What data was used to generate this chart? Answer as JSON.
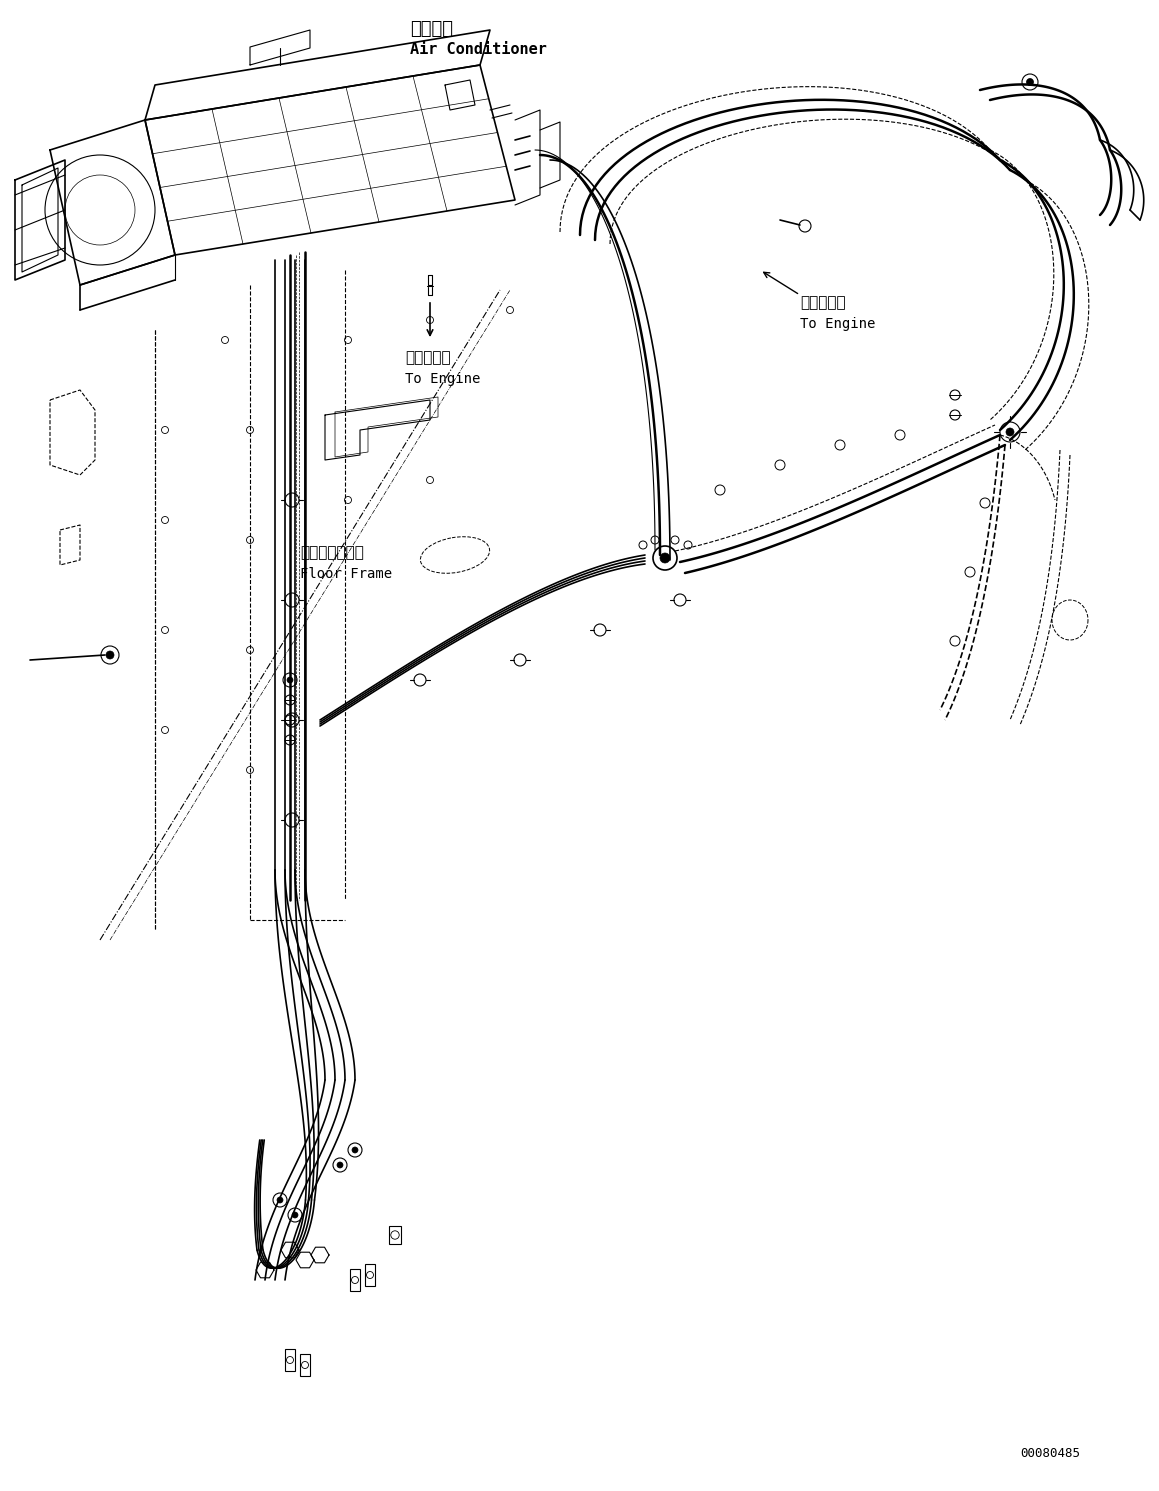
{
  "bg_color": "#ffffff",
  "line_color": "#000000",
  "text_color": "#000000",
  "figsize": [
    11.59,
    14.91
  ],
  "dpi": 100,
  "labels": {
    "air_conditioner_jp": "エアコン",
    "air_conditioner_en": "Air Conditioner",
    "to_engine_jp_1": "エンジンへ",
    "to_engine_en_1": "To Engine",
    "to_engine_jp_2": "エンジンへ",
    "to_engine_en_2": "To Engine",
    "floor_frame_jp": "フロアフレーム",
    "floor_frame_en": "Floor Frame",
    "part_number": "00080485"
  }
}
